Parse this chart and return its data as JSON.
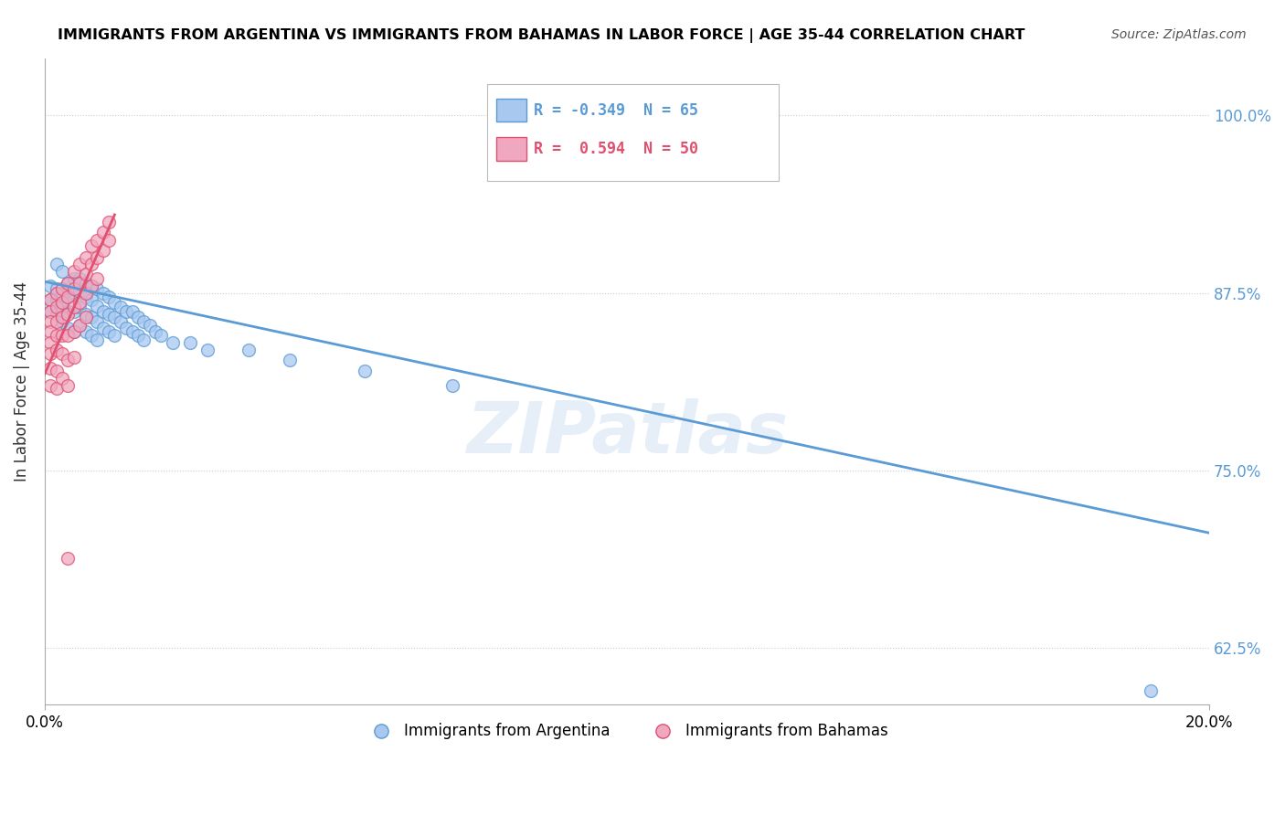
{
  "title": "IMMIGRANTS FROM ARGENTINA VS IMMIGRANTS FROM BAHAMAS IN LABOR FORCE | AGE 35-44 CORRELATION CHART",
  "source": "Source: ZipAtlas.com",
  "ylabel": "In Labor Force | Age 35-44",
  "yticks": [
    "62.5%",
    "75.0%",
    "87.5%",
    "100.0%"
  ],
  "ytick_vals": [
    0.625,
    0.75,
    0.875,
    1.0
  ],
  "xlim": [
    0.0,
    0.2
  ],
  "ylim": [
    0.585,
    1.04
  ],
  "argentina_color": "#a8c8f0",
  "bahamas_color": "#f0a8c0",
  "argentina_line_color": "#5b9bd5",
  "bahamas_line_color": "#e05070",
  "legend_R_argentina": "-0.349",
  "legend_N_argentina": "65",
  "legend_R_bahamas": "0.594",
  "legend_N_bahamas": "50",
  "watermark": "ZIPatlas",
  "argentina_points": [
    [
      0.001,
      0.88
    ],
    [
      0.001,
      0.87
    ],
    [
      0.001,
      0.862
    ],
    [
      0.002,
      0.895
    ],
    [
      0.002,
      0.878
    ],
    [
      0.002,
      0.87
    ],
    [
      0.002,
      0.86
    ],
    [
      0.003,
      0.89
    ],
    [
      0.003,
      0.875
    ],
    [
      0.003,
      0.865
    ],
    [
      0.003,
      0.855
    ],
    [
      0.004,
      0.882
    ],
    [
      0.004,
      0.872
    ],
    [
      0.004,
      0.862
    ],
    [
      0.004,
      0.85
    ],
    [
      0.005,
      0.885
    ],
    [
      0.005,
      0.875
    ],
    [
      0.005,
      0.862
    ],
    [
      0.005,
      0.848
    ],
    [
      0.006,
      0.885
    ],
    [
      0.006,
      0.876
    ],
    [
      0.006,
      0.865
    ],
    [
      0.006,
      0.852
    ],
    [
      0.007,
      0.882
    ],
    [
      0.007,
      0.872
    ],
    [
      0.007,
      0.86
    ],
    [
      0.007,
      0.848
    ],
    [
      0.008,
      0.88
    ],
    [
      0.008,
      0.87
    ],
    [
      0.008,
      0.858
    ],
    [
      0.008,
      0.845
    ],
    [
      0.009,
      0.878
    ],
    [
      0.009,
      0.866
    ],
    [
      0.009,
      0.855
    ],
    [
      0.009,
      0.842
    ],
    [
      0.01,
      0.875
    ],
    [
      0.01,
      0.862
    ],
    [
      0.01,
      0.85
    ],
    [
      0.011,
      0.872
    ],
    [
      0.011,
      0.86
    ],
    [
      0.011,
      0.848
    ],
    [
      0.012,
      0.868
    ],
    [
      0.012,
      0.858
    ],
    [
      0.012,
      0.845
    ],
    [
      0.013,
      0.865
    ],
    [
      0.013,
      0.855
    ],
    [
      0.014,
      0.862
    ],
    [
      0.014,
      0.85
    ],
    [
      0.015,
      0.862
    ],
    [
      0.015,
      0.848
    ],
    [
      0.016,
      0.858
    ],
    [
      0.016,
      0.845
    ],
    [
      0.017,
      0.855
    ],
    [
      0.017,
      0.842
    ],
    [
      0.018,
      0.852
    ],
    [
      0.019,
      0.848
    ],
    [
      0.02,
      0.845
    ],
    [
      0.022,
      0.84
    ],
    [
      0.025,
      0.84
    ],
    [
      0.028,
      0.835
    ],
    [
      0.035,
      0.835
    ],
    [
      0.042,
      0.828
    ],
    [
      0.055,
      0.82
    ],
    [
      0.07,
      0.81
    ],
    [
      0.19,
      0.595
    ]
  ],
  "bahamas_points": [
    [
      0.001,
      0.87
    ],
    [
      0.001,
      0.862
    ],
    [
      0.001,
      0.855
    ],
    [
      0.001,
      0.848
    ],
    [
      0.001,
      0.84
    ],
    [
      0.001,
      0.832
    ],
    [
      0.001,
      0.822
    ],
    [
      0.001,
      0.81
    ],
    [
      0.002,
      0.875
    ],
    [
      0.002,
      0.865
    ],
    [
      0.002,
      0.855
    ],
    [
      0.002,
      0.845
    ],
    [
      0.002,
      0.835
    ],
    [
      0.002,
      0.82
    ],
    [
      0.002,
      0.808
    ],
    [
      0.003,
      0.878
    ],
    [
      0.003,
      0.868
    ],
    [
      0.003,
      0.858
    ],
    [
      0.003,
      0.845
    ],
    [
      0.003,
      0.832
    ],
    [
      0.003,
      0.815
    ],
    [
      0.004,
      0.882
    ],
    [
      0.004,
      0.872
    ],
    [
      0.004,
      0.86
    ],
    [
      0.004,
      0.845
    ],
    [
      0.004,
      0.828
    ],
    [
      0.004,
      0.81
    ],
    [
      0.005,
      0.89
    ],
    [
      0.005,
      0.878
    ],
    [
      0.005,
      0.865
    ],
    [
      0.005,
      0.848
    ],
    [
      0.005,
      0.83
    ],
    [
      0.006,
      0.895
    ],
    [
      0.006,
      0.882
    ],
    [
      0.006,
      0.868
    ],
    [
      0.006,
      0.852
    ],
    [
      0.007,
      0.9
    ],
    [
      0.007,
      0.888
    ],
    [
      0.007,
      0.875
    ],
    [
      0.007,
      0.858
    ],
    [
      0.008,
      0.908
    ],
    [
      0.008,
      0.895
    ],
    [
      0.008,
      0.88
    ],
    [
      0.009,
      0.912
    ],
    [
      0.009,
      0.9
    ],
    [
      0.009,
      0.885
    ],
    [
      0.01,
      0.918
    ],
    [
      0.01,
      0.905
    ],
    [
      0.011,
      0.925
    ],
    [
      0.011,
      0.912
    ],
    [
      0.004,
      0.688
    ]
  ]
}
